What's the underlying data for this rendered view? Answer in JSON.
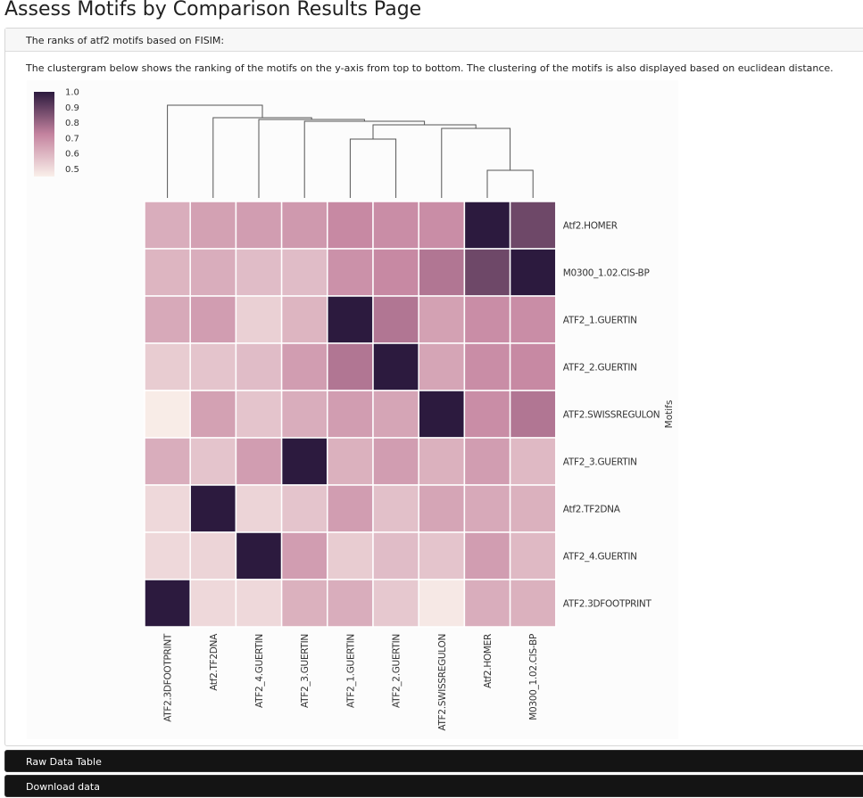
{
  "page": {
    "title": "Assess Motifs by Comparison Results Page"
  },
  "panel": {
    "heading": "The ranks of atf2 motifs based on FISIM:",
    "description": "The clustergram below shows the ranking of the motifs on the y-axis from top to bottom. The clustering of the motifs is also displayed based on euclidean distance."
  },
  "chart_data": {
    "type": "heatmap",
    "title": "",
    "xlabel": "",
    "ylabel": "Motifs",
    "rows": [
      "Atf2.HOMER",
      "M0300_1.02.CIS-BP",
      "ATF2_1.GUERTIN",
      "ATF2_2.GUERTIN",
      "ATF2.SWISSREGULON",
      "ATF2_3.GUERTIN",
      "Atf2.TF2DNA",
      "ATF2_4.GUERTIN",
      "ATF2.3DFOOTPRINT"
    ],
    "columns": [
      "ATF2.3DFOOTPRINT",
      "Atf2.TF2DNA",
      "ATF2_4.GUERTIN",
      "ATF2_3.GUERTIN",
      "ATF2_1.GUERTIN",
      "ATF2_2.GUERTIN",
      "ATF2.SWISSREGULON",
      "Atf2.HOMER",
      "M0300_1.02.CIS-BP"
    ],
    "values": [
      [
        0.62,
        0.65,
        0.66,
        0.67,
        0.71,
        0.7,
        0.7,
        1.0,
        0.88
      ],
      [
        0.6,
        0.62,
        0.58,
        0.58,
        0.69,
        0.71,
        0.76,
        0.88,
        1.0
      ],
      [
        0.63,
        0.66,
        0.53,
        0.6,
        1.0,
        0.76,
        0.65,
        0.7,
        0.7
      ],
      [
        0.54,
        0.56,
        0.58,
        0.66,
        0.76,
        1.0,
        0.64,
        0.7,
        0.71
      ],
      [
        0.46,
        0.65,
        0.56,
        0.62,
        0.66,
        0.64,
        1.0,
        0.7,
        0.76
      ],
      [
        0.62,
        0.56,
        0.66,
        1.0,
        0.61,
        0.66,
        0.61,
        0.66,
        0.59
      ],
      [
        0.51,
        1.0,
        0.52,
        0.56,
        0.66,
        0.57,
        0.64,
        0.63,
        0.61
      ],
      [
        0.51,
        0.52,
        1.0,
        0.66,
        0.54,
        0.58,
        0.56,
        0.66,
        0.59
      ],
      [
        1.0,
        0.51,
        0.51,
        0.61,
        0.62,
        0.55,
        0.47,
        0.62,
        0.61
      ]
    ],
    "colorbar": {
      "min": 0.45,
      "max": 1.0,
      "ticks": [
        1.0,
        0.9,
        0.8,
        0.7,
        0.6,
        0.5
      ]
    },
    "dendrogram_orientation": "top",
    "colors": {
      "low": "#faf0ea",
      "mid": "#c4839f",
      "high": "#2c1a3e"
    }
  },
  "buttons": {
    "raw_data_table": "Raw Data Table",
    "download_data": "Download data"
  }
}
